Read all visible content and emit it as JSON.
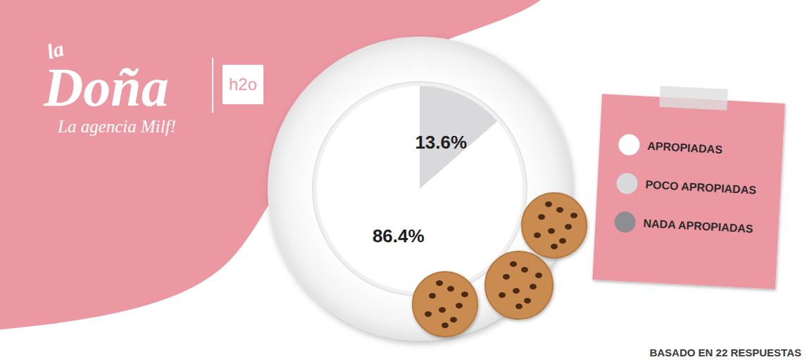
{
  "logo": {
    "brand_small": "la",
    "brand": "Doña",
    "partner": "h2o",
    "tagline": "La agencia Milf!"
  },
  "chart_data": {
    "type": "pie",
    "categories": [
      "APROPIADAS",
      "POCO APROPIADAS",
      "NADA APROPIADAS"
    ],
    "values": [
      86.4,
      13.6,
      0
    ],
    "value_labels": [
      "86.4%",
      "13.6%",
      null
    ],
    "colors": [
      "#ffffff",
      "#d9d9dc",
      "#8e8d92"
    ],
    "data_labels": true,
    "legend": "right",
    "annotations": [
      "BASADO EN 22 RESPUESTAS"
    ]
  }
}
